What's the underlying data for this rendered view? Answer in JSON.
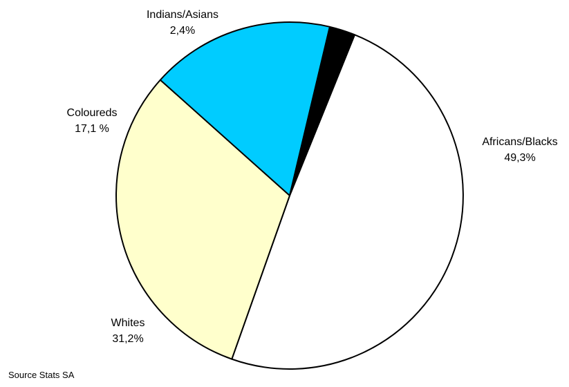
{
  "chart_data": {
    "type": "pie",
    "title": "",
    "slices": [
      {
        "label": "Africans/Blacks",
        "value": 49.3,
        "value_label": "49,3%",
        "color": "#ffffff"
      },
      {
        "label": "Whites",
        "value": 31.2,
        "value_label": "31,2%",
        "color": "#ffffcc"
      },
      {
        "label": "Coloureds",
        "value": 17.1,
        "value_label": "17,1 %",
        "color": "#00ccff"
      },
      {
        "label": "Indians/Asians",
        "value": 2.4,
        "value_label": "2,4%",
        "color": "#000000"
      }
    ],
    "start_angle_deg": 22,
    "direction": "clockwise",
    "outline_color": "#000000",
    "legend": "none"
  },
  "source_note": "Source Stats SA"
}
